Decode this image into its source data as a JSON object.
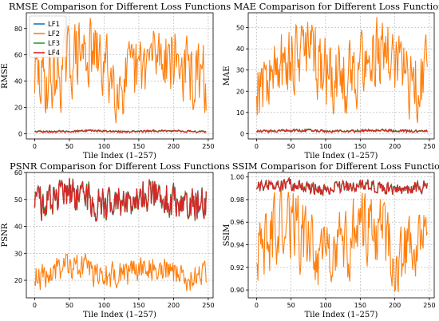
{
  "colors": {
    "LF1": "#1f77b4",
    "LF2": "#ff7f0e",
    "LF3": "#2ca02c",
    "LF4": "#d62728"
  },
  "legend_labels": [
    "LF1",
    "LF2",
    "LF3",
    "LF4"
  ],
  "chart_data": [
    {
      "type": "line",
      "title": "RMSE Comparison for Different Loss Functions",
      "xlabel": "Tile Index (1–257)",
      "ylabel": "RMSE",
      "xlim": [
        -12,
        257
      ],
      "ylim": [
        -4,
        92
      ],
      "xticks": [
        0,
        50,
        100,
        150,
        200,
        250
      ],
      "yticks": [
        0,
        20,
        40,
        60,
        80
      ],
      "grid": true,
      "legend": "top-left",
      "n_points": 248,
      "series": [
        {
          "name": "LF1",
          "min": 1.0,
          "max": 2.8
        },
        {
          "name": "LF2",
          "min": 8,
          "max": 88
        },
        {
          "name": "LF3",
          "min": 1.0,
          "max": 3.0
        },
        {
          "name": "LF4",
          "min": 0.8,
          "max": 2.8
        }
      ]
    },
    {
      "type": "line",
      "title": "MAE Comparison for Different Loss Functions",
      "xlabel": "Tile Index (1–257)",
      "ylabel": "MAE",
      "xlim": [
        -12,
        257
      ],
      "ylim": [
        -2.5,
        57
      ],
      "xticks": [
        0,
        50,
        100,
        150,
        200,
        250
      ],
      "yticks": [
        0,
        10,
        20,
        30,
        40,
        50
      ],
      "grid": true,
      "n_points": 248,
      "series": [
        {
          "name": "LF1",
          "min": 0.6,
          "max": 2.0
        },
        {
          "name": "LF2",
          "min": 5,
          "max": 55
        },
        {
          "name": "LF3",
          "min": 0.6,
          "max": 2.2
        },
        {
          "name": "LF4",
          "min": 0.5,
          "max": 2.0
        }
      ]
    },
    {
      "type": "line",
      "title": "PSNR Comparison for Different Loss Functions",
      "xlabel": "Tile Index (1–257)",
      "ylabel": "PSNR",
      "xlim": [
        -12,
        257
      ],
      "ylim": [
        13.5,
        60
      ],
      "xticks": [
        0,
        50,
        100,
        150,
        200,
        250
      ],
      "yticks": [
        20,
        30,
        40,
        50,
        60
      ],
      "grid": true,
      "n_points": 248,
      "series": [
        {
          "name": "LF1",
          "min": 42,
          "max": 58
        },
        {
          "name": "LF2",
          "min": 16,
          "max": 30
        },
        {
          "name": "LF3",
          "min": 42,
          "max": 58
        },
        {
          "name": "LF4",
          "min": 42,
          "max": 58
        }
      ]
    },
    {
      "type": "line",
      "title": "SSIM Comparison for Different Loss Functions",
      "xlabel": "Tile Index (1–257)",
      "ylabel": "SSIM",
      "xlim": [
        -12,
        257
      ],
      "ylim": [
        0.893,
        1.004
      ],
      "xticks": [
        0,
        50,
        100,
        150,
        200,
        250
      ],
      "yticks": [
        0.9,
        0.92,
        0.94,
        0.96,
        0.98,
        1.0
      ],
      "ytick_format": 2,
      "grid": true,
      "n_points": 248,
      "series": [
        {
          "name": "LF1",
          "min": 0.984,
          "max": 0.999
        },
        {
          "name": "LF2",
          "min": 0.898,
          "max": 0.995
        },
        {
          "name": "LF3",
          "min": 0.984,
          "max": 0.999
        },
        {
          "name": "LF4",
          "min": 0.984,
          "max": 0.999
        }
      ]
    }
  ]
}
